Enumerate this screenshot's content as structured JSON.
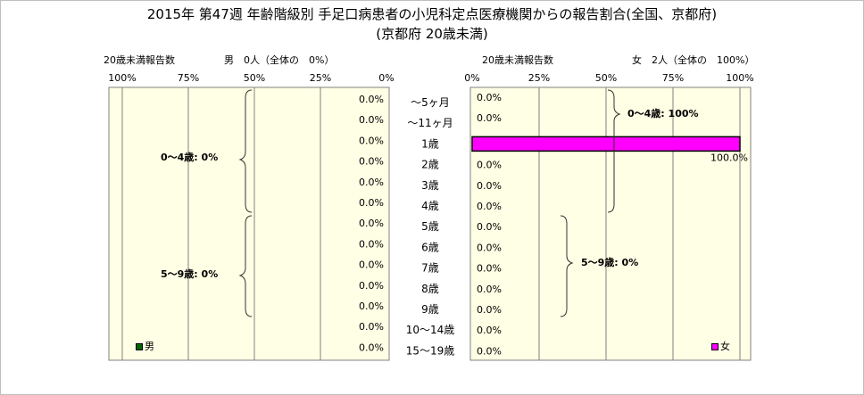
{
  "title": {
    "line1": "2015年 第47週 年齢階級別 手足口病患者の小児科定点医療機関からの報告割合(全国、京都府)",
    "line2": "(京都府 20歳未満)"
  },
  "colors": {
    "plot_bg": "#ffffe5",
    "female_bar": "#ff00ff",
    "male_bar": "#006600",
    "grid": "#808080"
  },
  "chart_data": [
    {
      "type": "bar",
      "orientation": "horizontal",
      "direction": "right-to-left",
      "header_left": "20歳未満報告数",
      "header_right": "男　0人（全体の　0%）",
      "x_ticks": [
        "100%",
        "75%",
        "50%",
        "25%",
        "0%"
      ],
      "xlim": [
        0,
        100
      ],
      "grid": true,
      "categories": [
        "～5ヶ月",
        "～11ヶ月",
        "1歳",
        "2歳",
        "3歳",
        "4歳",
        "5歳",
        "6歳",
        "7歳",
        "8歳",
        "9歳",
        "10～14歳",
        "15～19歳"
      ],
      "series": [
        {
          "name": "男",
          "values": [
            0,
            0,
            0,
            0,
            0,
            0,
            0,
            0,
            0,
            0,
            0,
            0,
            0
          ],
          "labels": [
            "0.0%",
            "0.0%",
            "0.0%",
            "0.0%",
            "0.0%",
            "0.0%",
            "0.0%",
            "0.0%",
            "0.0%",
            "0.0%",
            "0.0%",
            "0.0%",
            "0.0%"
          ]
        }
      ],
      "annotations": [
        "0～4歳: 0%",
        "5～9歳: 0%"
      ]
    },
    {
      "type": "bar",
      "orientation": "horizontal",
      "direction": "left-to-right",
      "header_left": "20歳未満報告数",
      "header_right": "女　2人（全体の　100%）",
      "x_ticks": [
        "0%",
        "25%",
        "50%",
        "75%",
        "100%"
      ],
      "xlim": [
        0,
        100
      ],
      "grid": true,
      "categories": [
        "～5ヶ月",
        "～11ヶ月",
        "1歳",
        "2歳",
        "3歳",
        "4歳",
        "5歳",
        "6歳",
        "7歳",
        "8歳",
        "9歳",
        "10～14歳",
        "15～19歳"
      ],
      "series": [
        {
          "name": "女",
          "values": [
            0,
            0,
            100,
            0,
            0,
            0,
            0,
            0,
            0,
            0,
            0,
            0,
            0
          ],
          "labels": [
            "0.0%",
            "0.0%",
            "100.0%",
            "0.0%",
            "0.0%",
            "0.0%",
            "0.0%",
            "0.0%",
            "0.0%",
            "0.0%",
            "0.0%",
            "0.0%",
            "0.0%"
          ]
        }
      ],
      "annotations": [
        "0～4歳: 100%",
        "5～9歳: 0%"
      ]
    }
  ]
}
